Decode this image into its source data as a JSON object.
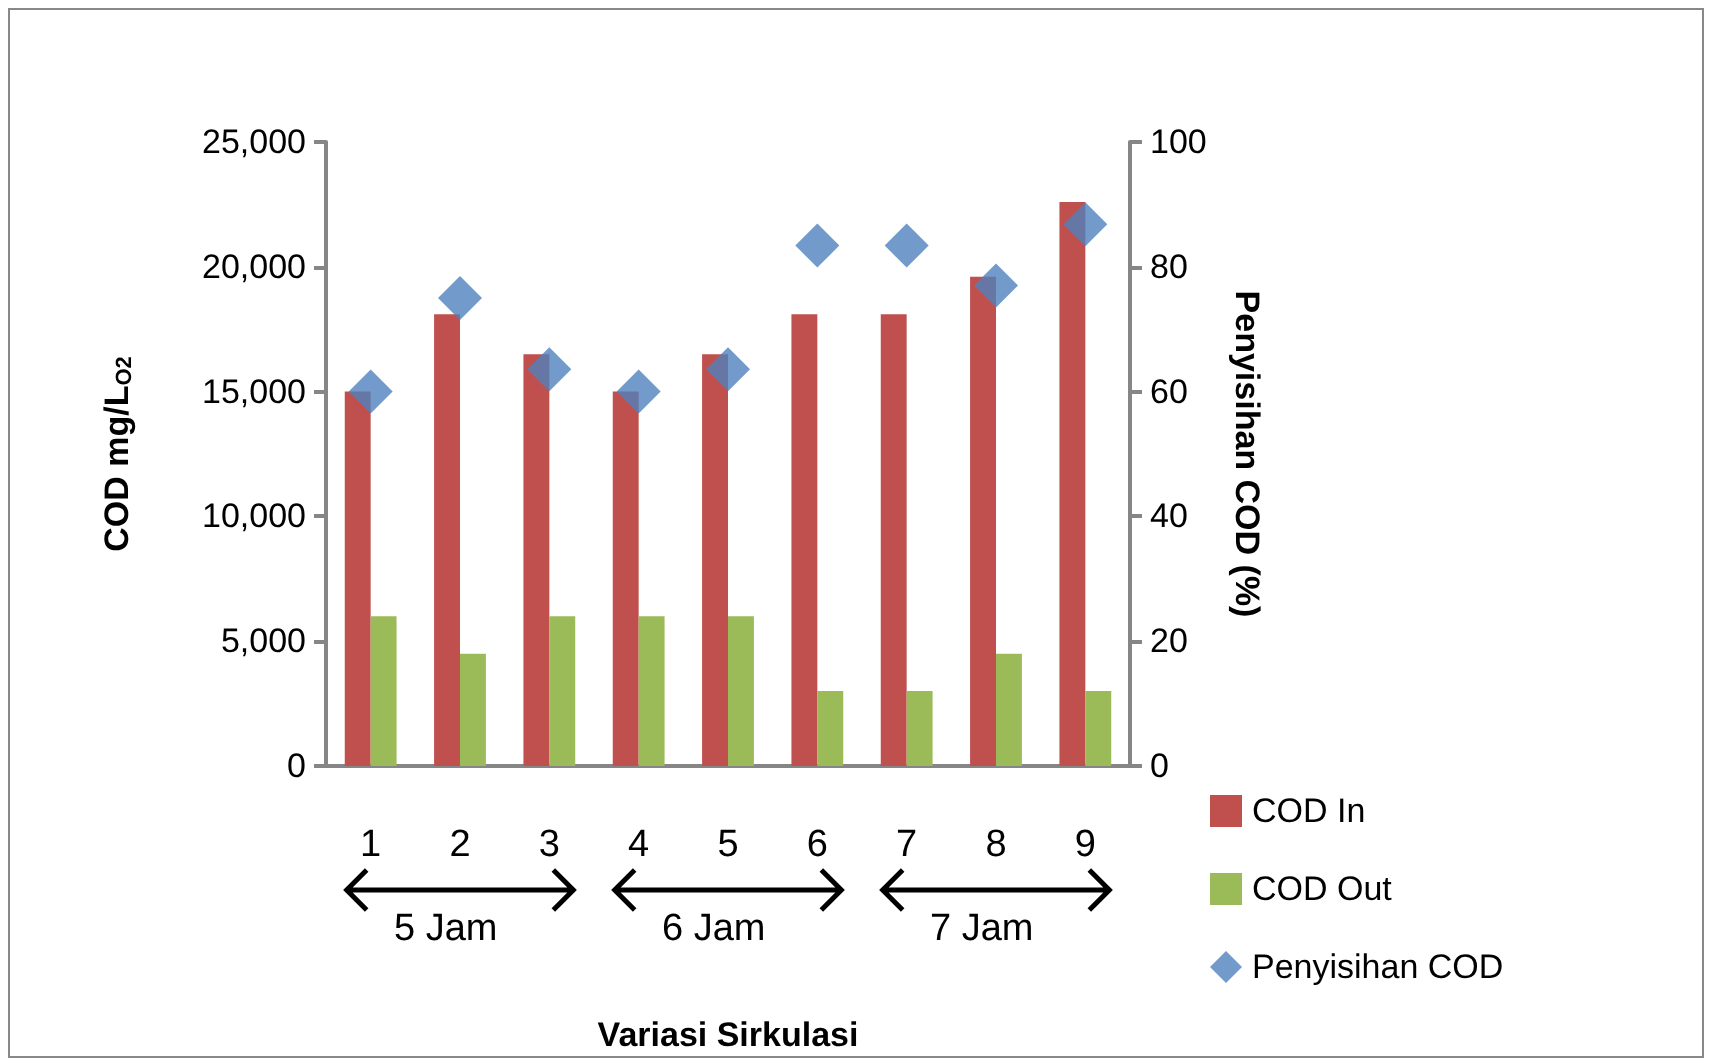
{
  "chart_data": {
    "type": "bar",
    "xlabel": "Variasi Sirkulasi",
    "ylabel": "COD mg/L$_{O2}$",
    "y2label": "Penyisihan COD (%)",
    "categories": [
      "1",
      "2",
      "3",
      "4",
      "5",
      "6",
      "7",
      "8",
      "9"
    ],
    "series": [
      {
        "name": "COD In",
        "color": "#c0504d",
        "values": [
          15000,
          18100,
          16500,
          15000,
          16500,
          18100,
          18100,
          19600,
          22600
        ]
      },
      {
        "name": "COD Out",
        "color": "#9bbb59",
        "values": [
          6000,
          4500,
          6000,
          6000,
          6000,
          3000,
          3000,
          4500,
          3000
        ]
      },
      {
        "name": "Penyisihan COD",
        "type": "scatter",
        "axis": "y2",
        "marker": "diamond",
        "color": "#4f81bd",
        "values": [
          60,
          75,
          63.6,
          60,
          63.6,
          83.4,
          83.4,
          77,
          86.8
        ]
      }
    ],
    "ylim": [
      0,
      25000
    ],
    "yticks": [
      {
        "value": 0,
        "label": "0"
      },
      {
        "value": 5000,
        "label": "5,000"
      },
      {
        "value": 10000,
        "label": "10,000"
      },
      {
        "value": 15000,
        "label": "15,000"
      },
      {
        "value": 20000,
        "label": "20,000"
      },
      {
        "value": 25000,
        "label": "25,000"
      }
    ],
    "y2lim": [
      0,
      100
    ],
    "y2ticks": [
      0,
      20,
      40,
      60,
      80,
      100
    ],
    "annotations": [
      "5 Jam",
      "6 Jam",
      "7 Jam"
    ],
    "grid": false,
    "legend": "bottom right"
  }
}
